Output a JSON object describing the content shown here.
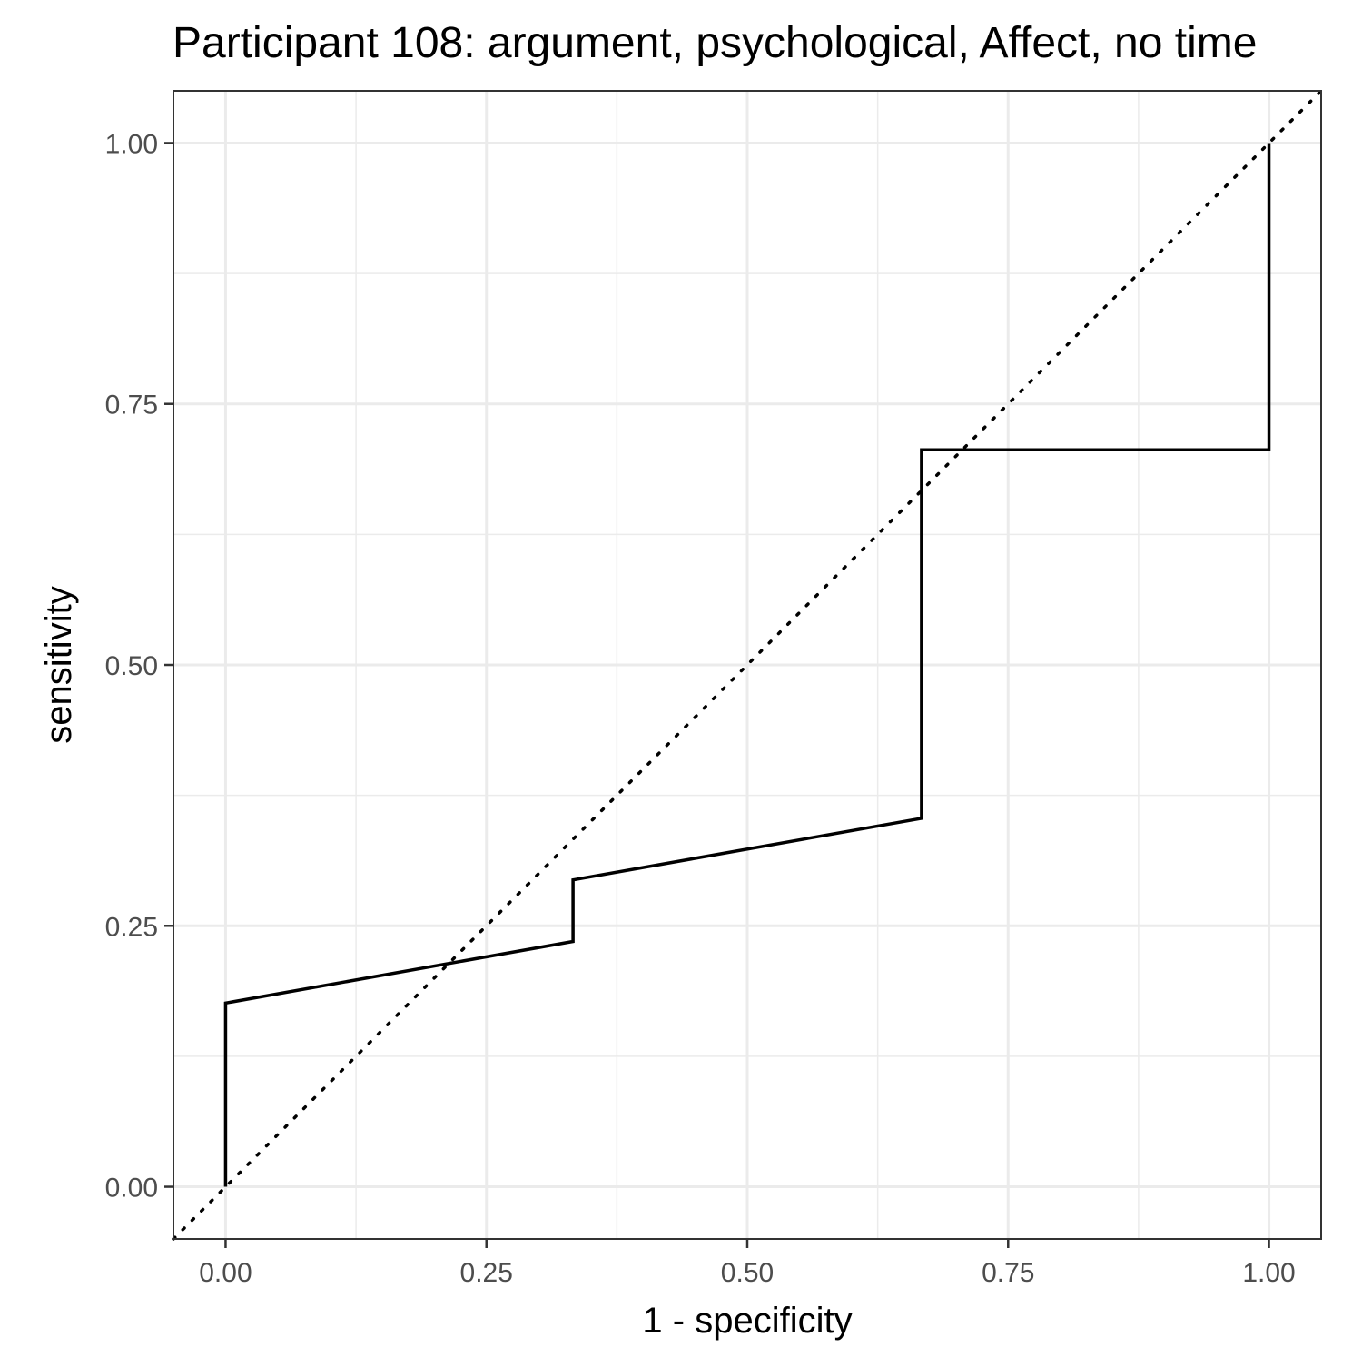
{
  "chart_data": {
    "type": "line",
    "title": "Participant 108: argument, psychological, Affect, no time",
    "xlabel": "1 - specificity",
    "ylabel": "sensitivity",
    "xlim": [
      -0.05,
      1.05
    ],
    "ylim": [
      -0.05,
      1.05
    ],
    "x_ticks": [
      0.0,
      0.25,
      0.5,
      0.75,
      1.0
    ],
    "x_tick_labels": [
      "0.00",
      "0.25",
      "0.50",
      "0.75",
      "1.00"
    ],
    "y_ticks": [
      0.0,
      0.25,
      0.5,
      0.75,
      1.0
    ],
    "y_tick_labels": [
      "0.00",
      "0.25",
      "0.50",
      "0.75",
      "1.00"
    ],
    "grid": true,
    "series": [
      {
        "style": "solid",
        "color": "#000000",
        "x": [
          0.0,
          0.0,
          0.333,
          0.333,
          0.667,
          0.667,
          1.0,
          1.0
        ],
        "y": [
          0.0,
          0.176,
          0.235,
          0.294,
          0.353,
          0.706,
          0.706,
          1.0
        ]
      },
      {
        "style": "dotted",
        "color": "#000000",
        "x": [
          -0.05,
          1.05
        ],
        "y": [
          -0.05,
          1.05
        ]
      }
    ]
  }
}
